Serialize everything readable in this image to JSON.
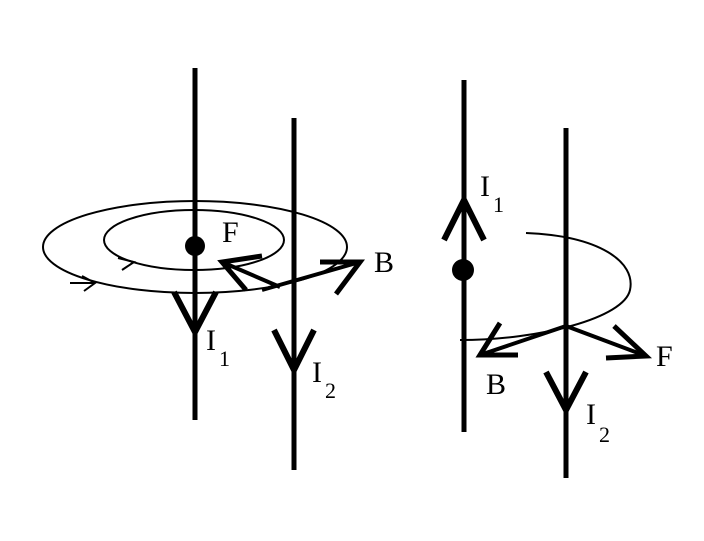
{
  "diagram": {
    "left": {
      "wire1_current": {
        "letter": "I",
        "sub": "1"
      },
      "wire2_current": {
        "letter": "I",
        "sub": "2"
      },
      "force_label": "F",
      "field_label": "B"
    },
    "right": {
      "wire1_current": {
        "letter": "I",
        "sub": "1"
      },
      "wire2_current": {
        "letter": "I",
        "sub": "2"
      },
      "field_label": "B",
      "force_label": "F"
    }
  }
}
